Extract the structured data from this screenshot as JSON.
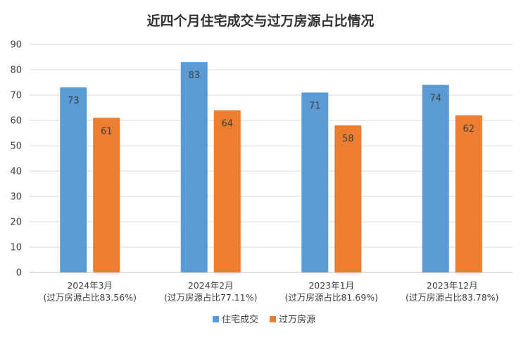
{
  "chart_data": {
    "type": "bar",
    "title": "近四个月住宅成交与过万房源占比情况",
    "categories": [
      [
        "2024年3月",
        "(过万房源占比83.56%)"
      ],
      [
        "2024年2月",
        "(过万房源占比77.11%)"
      ],
      [
        "2023年1月",
        "(过万房源占比81.69%)"
      ],
      [
        "2023年12月",
        "(过万房源占比83.78%)"
      ]
    ],
    "series": [
      {
        "name": "住宅成交",
        "color": "#5b9bd5",
        "values": [
          73,
          83,
          71,
          74
        ]
      },
      {
        "name": "过万房源",
        "color": "#ed7d31",
        "values": [
          61,
          64,
          58,
          62
        ]
      }
    ],
    "ylim": [
      0,
      90
    ],
    "yticks": [
      0,
      10,
      20,
      30,
      40,
      50,
      60,
      70,
      80,
      90
    ],
    "grid": true,
    "legend": "bottom",
    "data_labels": true
  }
}
